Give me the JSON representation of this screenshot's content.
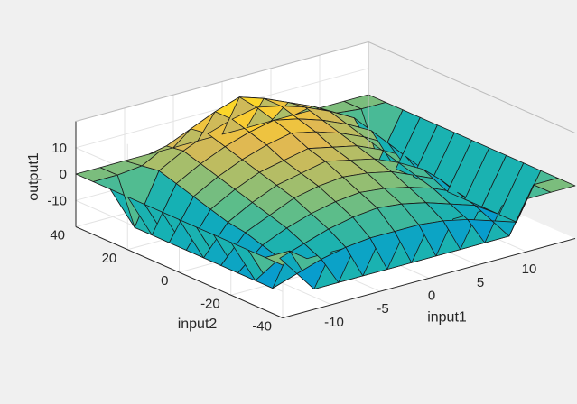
{
  "chart_data": {
    "type": "surface",
    "xlabel": "input1",
    "ylabel": "input2",
    "zlabel": "output1",
    "xlim": [
      -15,
      15
    ],
    "ylim": [
      -40,
      40
    ],
    "zlim": [
      -20,
      20
    ],
    "x_ticks": [
      "-10",
      "-5",
      "0",
      "5",
      "10"
    ],
    "y_ticks": [
      "-40",
      "-20",
      "0",
      "20",
      "40"
    ],
    "z_ticks": [
      "-10",
      "0",
      "10"
    ],
    "grid": true,
    "colormap": "parula",
    "x": [
      -15,
      -12.5,
      -10,
      -7.5,
      -5,
      -2.5,
      0,
      2.5,
      5,
      7.5,
      10,
      12.5,
      15
    ],
    "y": [
      -40,
      -33.3,
      -26.7,
      -20,
      -13.3,
      -6.7,
      0,
      6.7,
      13.3,
      20,
      26.7,
      33.3,
      40
    ],
    "z": [
      [
        0,
        0,
        0,
        0,
        0,
        0,
        0,
        0,
        0,
        0,
        0,
        0,
        0
      ],
      [
        0,
        0,
        -17,
        -17,
        -17,
        -17,
        -17,
        -17,
        -17,
        -17,
        -17,
        0,
        0
      ],
      [
        0,
        -17,
        -14,
        -11,
        -9,
        -8,
        -8,
        -8,
        -9,
        -11,
        -14,
        -17,
        0
      ],
      [
        0,
        -17,
        -11,
        -8,
        -5,
        -3,
        -2,
        -3,
        -5,
        -8,
        -11,
        -17,
        0
      ],
      [
        0,
        -17,
        -9,
        -5,
        -2,
        0,
        1,
        0,
        -2,
        -5,
        -9,
        -17,
        0
      ],
      [
        0,
        -17,
        -7,
        -3,
        1,
        3,
        4,
        3,
        1,
        -3,
        -7,
        -17,
        0
      ],
      [
        0,
        -17,
        -6,
        -1,
        3,
        5,
        7,
        5,
        3,
        -1,
        -6,
        -17,
        0
      ],
      [
        0,
        -17,
        -4,
        1,
        5,
        7,
        9,
        7,
        5,
        1,
        -4,
        -17,
        0
      ],
      [
        0,
        -17,
        -2,
        3,
        7,
        10,
        12,
        10,
        7,
        3,
        -2,
        -17,
        0
      ],
      [
        0,
        -17,
        0,
        5,
        9,
        12,
        14,
        12,
        9,
        5,
        0,
        -17,
        0
      ],
      [
        0,
        -17,
        2,
        7,
        11,
        14,
        16,
        14,
        11,
        7,
        2,
        -17,
        0
      ],
      [
        0,
        0,
        1,
        6,
        10,
        14,
        17,
        14,
        10,
        6,
        1,
        0,
        0
      ],
      [
        0,
        0,
        0,
        0,
        0,
        0,
        0,
        0,
        0,
        0,
        0,
        0,
        0
      ]
    ]
  }
}
